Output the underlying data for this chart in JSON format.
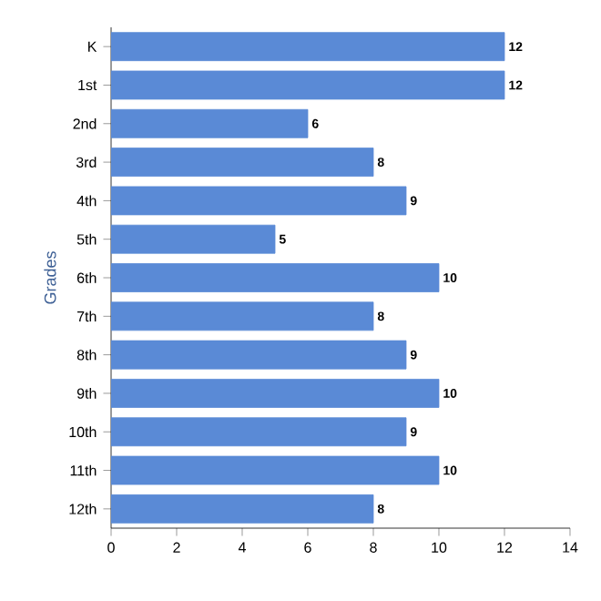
{
  "chart_data": {
    "type": "bar",
    "orientation": "horizontal",
    "ylabel": "Grades",
    "categories": [
      "K",
      "1st",
      "2nd",
      "3rd",
      "4th",
      "5th",
      "6th",
      "7th",
      "8th",
      "9th",
      "10th",
      "11th",
      "12th"
    ],
    "values": [
      12,
      12,
      6,
      8,
      9,
      5,
      10,
      8,
      9,
      10,
      9,
      10,
      8
    ],
    "color": "#5a8ad6",
    "xlim": [
      0,
      14
    ],
    "xticks": [
      0,
      2,
      4,
      6,
      8,
      10,
      12,
      14
    ],
    "data_labels": true
  }
}
